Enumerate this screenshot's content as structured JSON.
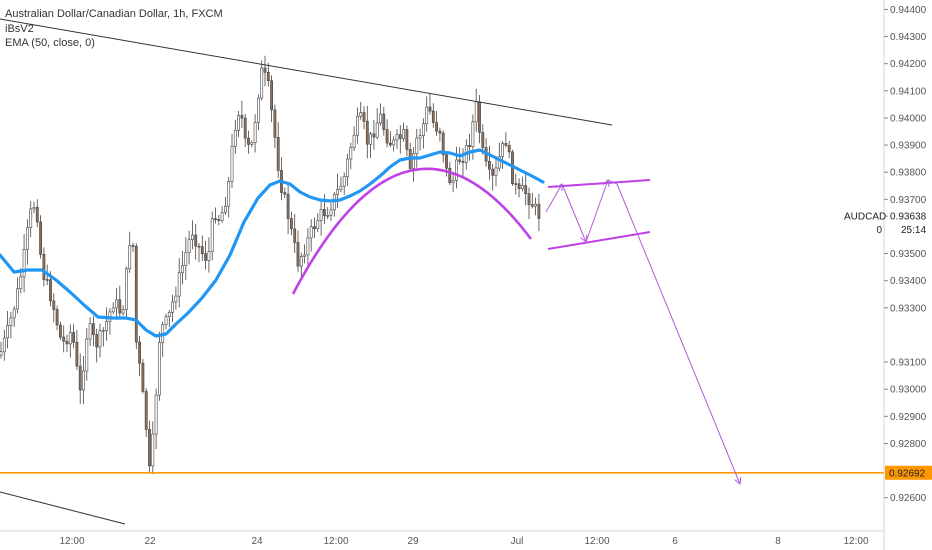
{
  "header": {
    "title": "Australian Dollar/Canadian Dollar, 1h, FXCM",
    "indicator1": "iBsV2",
    "indicator2": "EMA (50, close, 0)"
  },
  "chart_data": {
    "type": "candlestick",
    "symbol": "AUDCAD",
    "timeframe": "1h",
    "ylim": [
      0.9254,
      0.9442
    ],
    "y_ticks": [
      "0.94400",
      "0.94300",
      "0.94200",
      "0.94100",
      "0.94000",
      "0.93900",
      "0.93800",
      "0.93700",
      "0.93500",
      "0.93400",
      "0.93300",
      "0.93100",
      "0.93000",
      "0.92900",
      "0.92800",
      "0.92600"
    ],
    "x_ticks": [
      "12:00",
      "22",
      "24",
      "12:00",
      "29",
      "Jul",
      "12:00",
      "6",
      "8",
      "12:00"
    ],
    "last_price": {
      "label": "AUDCAD",
      "value": "0.93638",
      "countdown": "25:14",
      "marker": "0"
    },
    "horizontal_line": {
      "value": "0.92692",
      "color": "#ff9800"
    },
    "colors": {
      "ema": "#2196f3",
      "channel": "#c040e8",
      "projection": "#b05cd8",
      "level": "#ff9800",
      "trendline": "#333333",
      "up_candle": "#ffffff",
      "down_candle": "#8b6f5a"
    }
  }
}
